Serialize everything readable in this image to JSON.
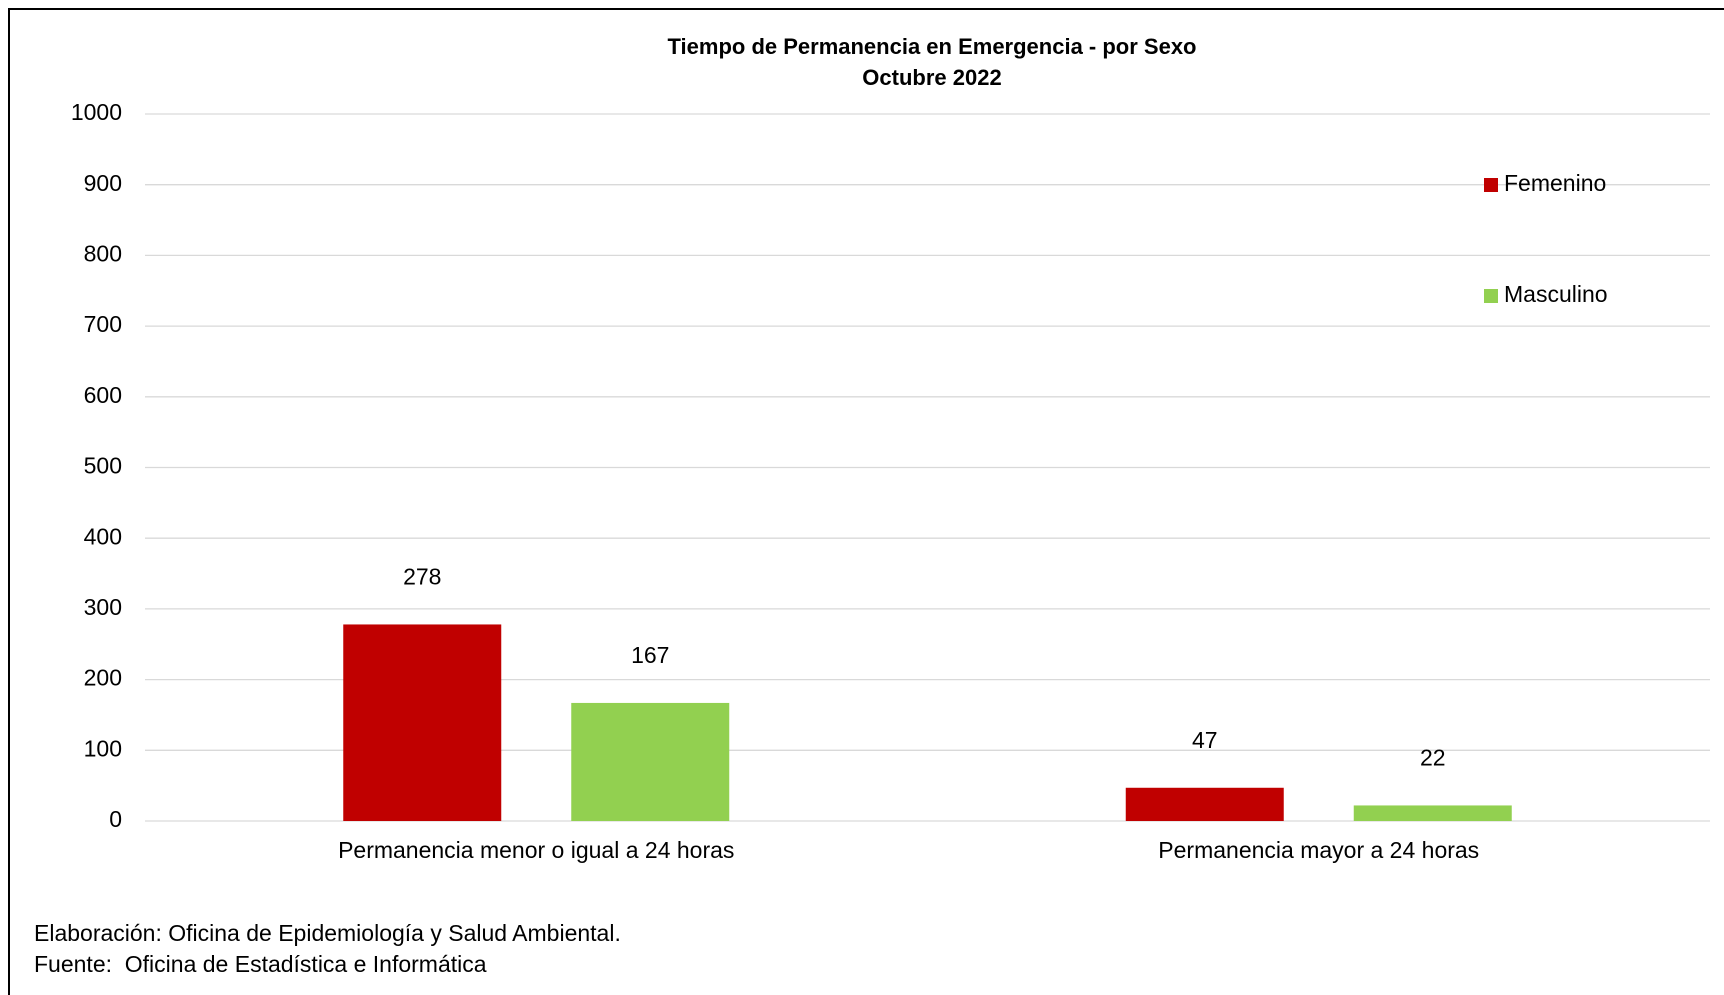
{
  "chart_data": {
    "type": "bar",
    "title": "Tiempo de Permanencia en Emergencia - por Sexo",
    "subtitle": "Octubre 2022",
    "categories": [
      "Permanencia menor o igual a 24 horas",
      "Permanencia mayor a 24 horas"
    ],
    "series": [
      {
        "name": "Femenino",
        "color": "#c00000",
        "values": [
          278,
          47
        ]
      },
      {
        "name": "Masculino",
        "color": "#92d050",
        "values": [
          167,
          22
        ]
      }
    ],
    "ylim": [
      0,
      1000
    ],
    "yticks": [
      0,
      100,
      200,
      300,
      400,
      500,
      600,
      700,
      800,
      900,
      1000
    ],
    "grid": true,
    "legend": "right",
    "notes": [
      "Elaboración: Oficina de Epidemiología y Salud Ambiental.",
      "Fuente:  Oficina de Estadística e Informática"
    ]
  }
}
